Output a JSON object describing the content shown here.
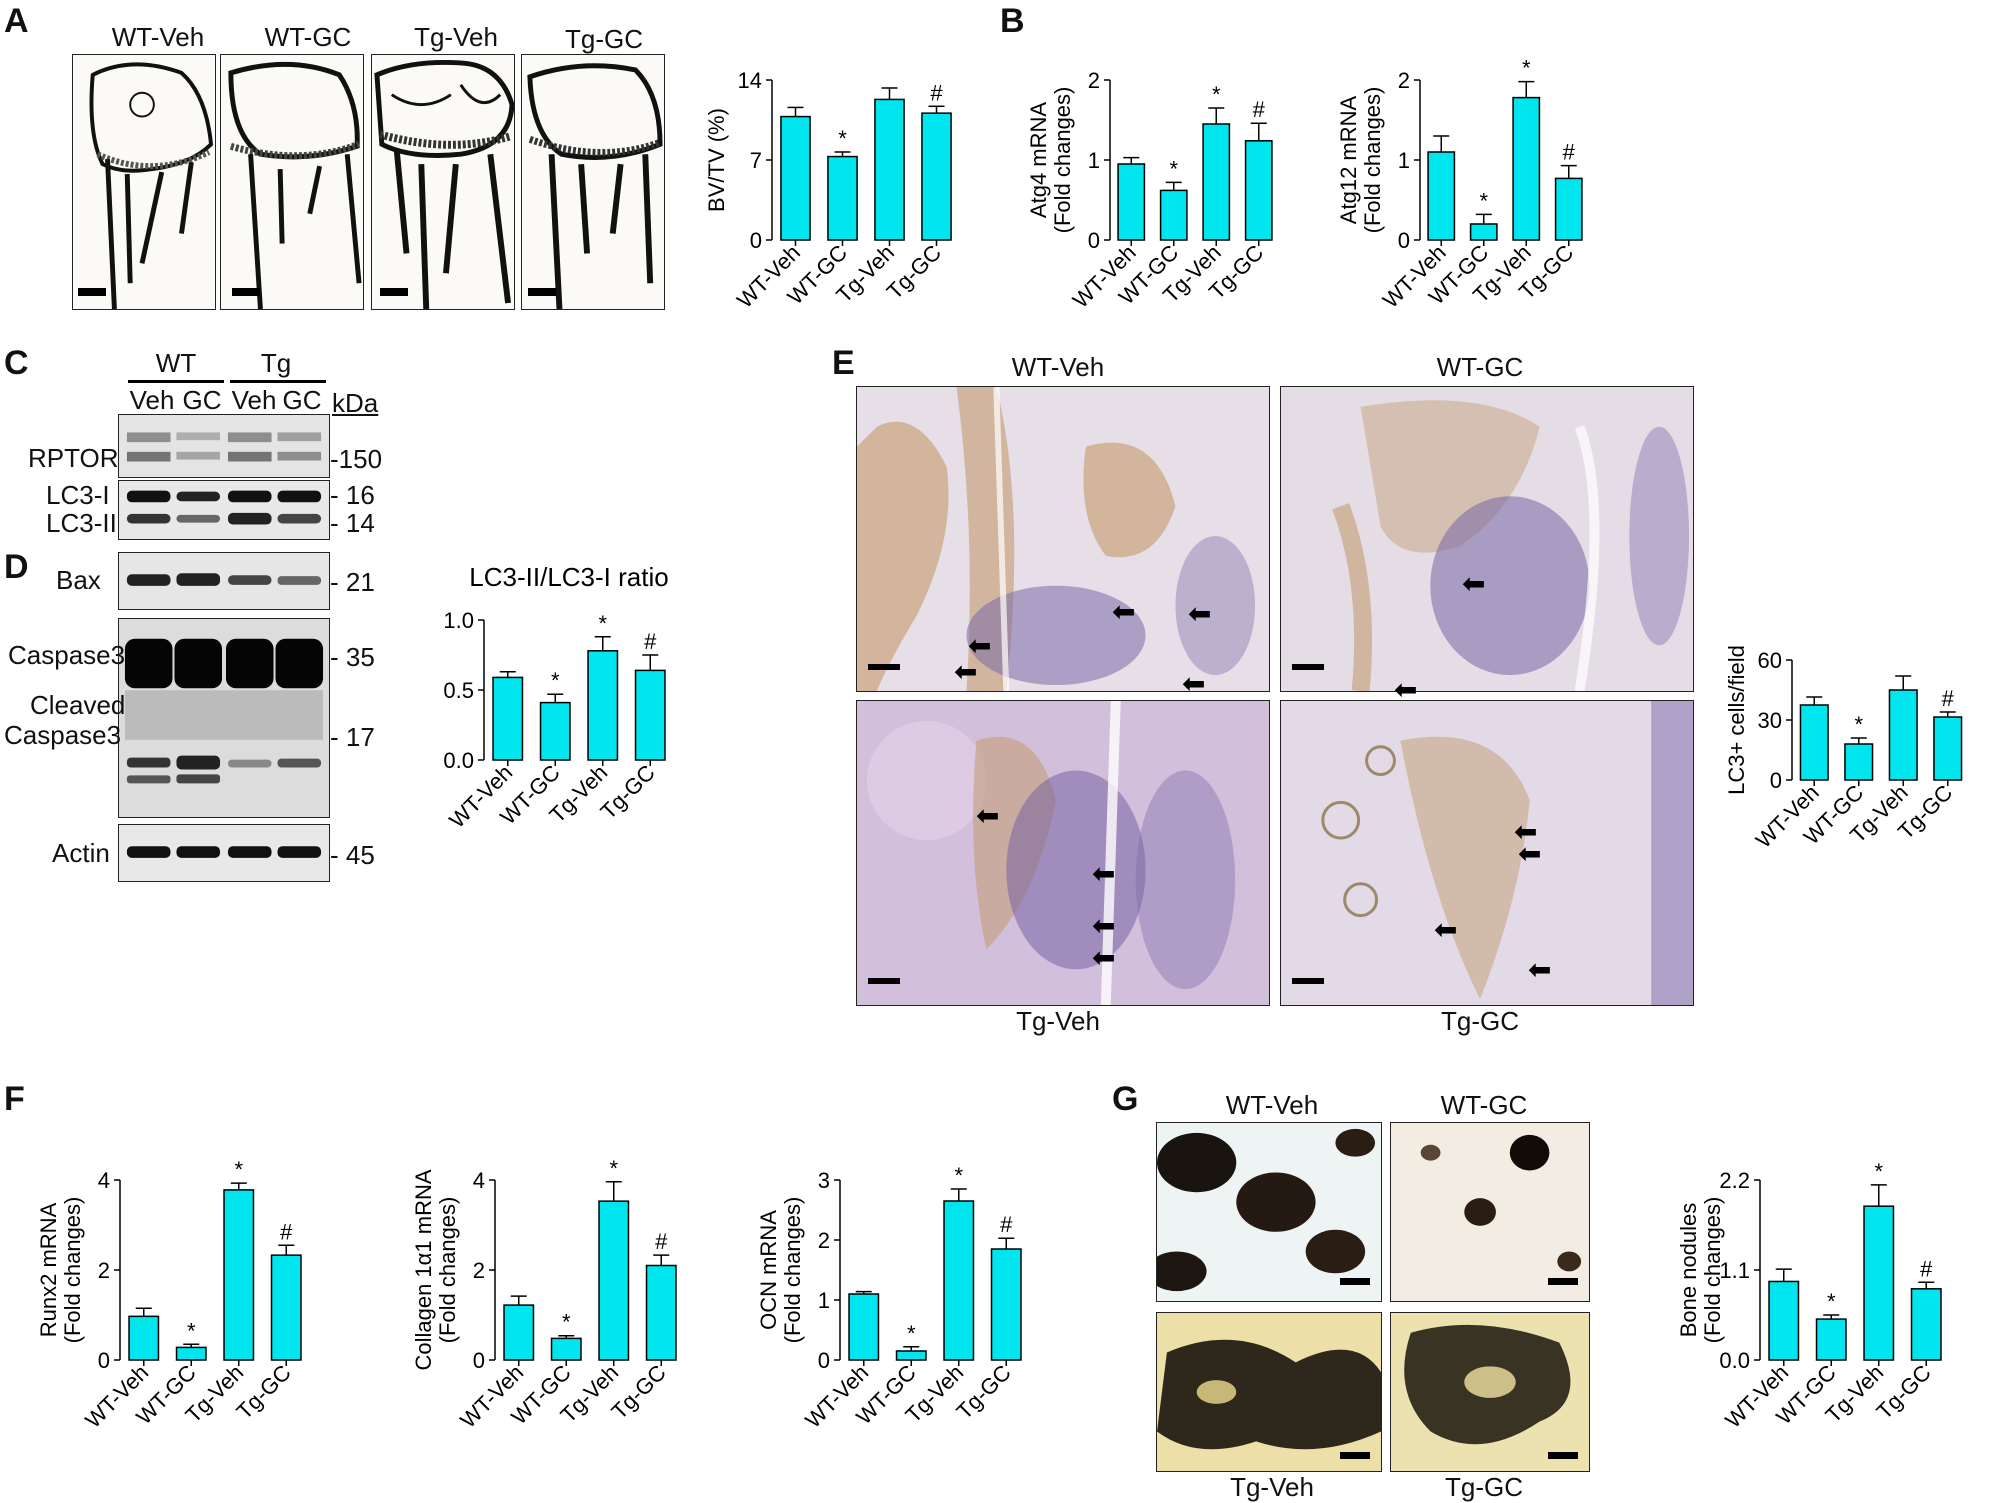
{
  "panels": {
    "A": {
      "letter": "A",
      "image_labels": [
        "WT-Veh",
        "WT-GC",
        "Tg-Veh",
        "Tg-GC"
      ]
    },
    "B": {
      "letter": "B"
    },
    "C": {
      "letter": "C",
      "group_labels": [
        "WT",
        "Tg"
      ],
      "lane_labels": [
        "Veh",
        "GC",
        "Veh",
        "GC"
      ],
      "kda_label": "kDa",
      "rows": [
        {
          "name": "RPTOR",
          "marker": "-150"
        },
        {
          "name": "LC3-I",
          "marker": "- 16"
        },
        {
          "name": "LC3-II",
          "marker": "- 14"
        }
      ]
    },
    "D": {
      "letter": "D",
      "rows": [
        {
          "name": "Bax",
          "marker": "- 21"
        },
        {
          "name": "Caspase3",
          "marker": "- 35"
        },
        {
          "name": "Cleaved\nCaspase3",
          "name_line1": "Cleaved",
          "name_line2": "Caspase3",
          "marker": "- 17"
        },
        {
          "name": "Actin",
          "marker": "- 45"
        }
      ]
    },
    "E": {
      "letter": "E",
      "image_labels": [
        "WT-Veh",
        "WT-GC",
        "Tg-Veh",
        "Tg-GC"
      ]
    },
    "F": {
      "letter": "F"
    },
    "G": {
      "letter": "G",
      "image_labels": [
        "WT-Veh",
        "WT-GC",
        "Tg-Veh",
        "Tg-GC"
      ]
    }
  },
  "chart_data": [
    {
      "id": "bvtv",
      "type": "bar",
      "title": "",
      "ylabel": "BV/TV (%)",
      "ylabel2": "",
      "categories": [
        "WT-Veh",
        "WT-GC",
        "Tg-Veh",
        "Tg-GC"
      ],
      "values": [
        10.8,
        7.3,
        12.3,
        11.1
      ],
      "errors": [
        0.8,
        0.4,
        1.0,
        0.6
      ],
      "marks": [
        "",
        "*",
        "",
        "#"
      ],
      "ylim": [
        0,
        14
      ],
      "yticks": [
        "0",
        "7",
        "14"
      ],
      "color": "#00e5ee"
    },
    {
      "id": "atg4",
      "type": "bar",
      "title": "",
      "ylabel": "Atg4 mRNA",
      "ylabel2": "(Fold changes)",
      "categories": [
        "WT-Veh",
        "WT-GC",
        "Tg-Veh",
        "Tg-GC"
      ],
      "values": [
        0.95,
        0.62,
        1.45,
        1.24
      ],
      "errors": [
        0.08,
        0.1,
        0.2,
        0.22
      ],
      "marks": [
        "",
        "*",
        "*",
        "#"
      ],
      "ylim": [
        0,
        2
      ],
      "yticks": [
        "0",
        "1",
        "2"
      ],
      "color": "#00e5ee"
    },
    {
      "id": "atg12",
      "type": "bar",
      "title": "",
      "ylabel": "Atg12 mRNA",
      "ylabel2": "(Fold changes)",
      "categories": [
        "WT-Veh",
        "WT-GC",
        "Tg-Veh",
        "Tg-GC"
      ],
      "values": [
        1.1,
        0.2,
        1.78,
        0.77
      ],
      "errors": [
        0.2,
        0.12,
        0.2,
        0.16
      ],
      "marks": [
        "",
        "*",
        "*",
        "#"
      ],
      "ylim": [
        0,
        2
      ],
      "yticks": [
        "0",
        "1",
        "2"
      ],
      "color": "#00e5ee"
    },
    {
      "id": "lc3ratio",
      "type": "bar",
      "title": "LC3-II/LC3-I ratio",
      "ylabel": "",
      "ylabel2": "",
      "categories": [
        "WT-Veh",
        "WT-GC",
        "Tg-Veh",
        "Tg-GC"
      ],
      "values": [
        0.59,
        0.41,
        0.78,
        0.64
      ],
      "errors": [
        0.04,
        0.06,
        0.1,
        0.11
      ],
      "marks": [
        "",
        "*",
        "*",
        "#"
      ],
      "ylim": [
        0,
        1.0
      ],
      "yticks": [
        "0.0",
        "0.5",
        "1.0"
      ],
      "color": "#00e5ee"
    },
    {
      "id": "lc3cells",
      "type": "bar",
      "title": "",
      "ylabel": "LC3+ cells/field",
      "ylabel2": "",
      "categories": [
        "WT-Veh",
        "WT-GC",
        "Tg-Veh",
        "Tg-GC"
      ],
      "values": [
        37.5,
        18,
        45,
        31.5
      ],
      "errors": [
        4,
        3,
        7,
        2.5
      ],
      "marks": [
        "",
        "*",
        "",
        "#"
      ],
      "ylim": [
        0,
        60
      ],
      "yticks": [
        "0",
        "30",
        "60"
      ],
      "color": "#00e5ee"
    },
    {
      "id": "runx2",
      "type": "bar",
      "title": "",
      "ylabel": "Runx2 mRNA",
      "ylabel2": "(Fold changes)",
      "categories": [
        "WT-Veh",
        "WT-GC",
        "Tg-Veh",
        "Tg-GC"
      ],
      "values": [
        0.97,
        0.28,
        3.78,
        2.33
      ],
      "errors": [
        0.18,
        0.07,
        0.15,
        0.22
      ],
      "marks": [
        "",
        "*",
        "*",
        "#"
      ],
      "ylim": [
        0,
        4
      ],
      "yticks": [
        "0",
        "2",
        "4"
      ],
      "color": "#00e5ee"
    },
    {
      "id": "col1a1",
      "type": "bar",
      "title": "",
      "ylabel": "Collagen 1α1 mRNA",
      "ylabel2": "(Fold changes)",
      "categories": [
        "WT-Veh",
        "WT-GC",
        "Tg-Veh",
        "Tg-GC"
      ],
      "values": [
        1.22,
        0.48,
        3.53,
        2.1
      ],
      "errors": [
        0.2,
        0.06,
        0.43,
        0.23
      ],
      "marks": [
        "",
        "*",
        "*",
        "#"
      ],
      "ylim": [
        0,
        4
      ],
      "yticks": [
        "0",
        "2",
        "4"
      ],
      "color": "#00e5ee"
    },
    {
      "id": "ocn",
      "type": "bar",
      "title": "",
      "ylabel": "OCN mRNA",
      "ylabel2": "(Fold changes)",
      "categories": [
        "WT-Veh",
        "WT-GC",
        "Tg-Veh",
        "Tg-GC"
      ],
      "values": [
        1.1,
        0.15,
        2.65,
        1.85
      ],
      "errors": [
        0.04,
        0.07,
        0.2,
        0.18
      ],
      "marks": [
        "",
        "*",
        "*",
        "#"
      ],
      "ylim": [
        0,
        3
      ],
      "yticks": [
        "0",
        "1",
        "2",
        "3"
      ],
      "color": "#00e5ee"
    },
    {
      "id": "nodules",
      "type": "bar",
      "title": "",
      "ylabel": "Bone nodules",
      "ylabel2": "(Fold changes)",
      "categories": [
        "WT-Veh",
        "WT-GC",
        "Tg-Veh",
        "Tg-GC"
      ],
      "values": [
        0.96,
        0.5,
        1.88,
        0.87
      ],
      "errors": [
        0.15,
        0.05,
        0.26,
        0.08
      ],
      "marks": [
        "",
        "*",
        "*",
        "#"
      ],
      "ylim": [
        0,
        2.2
      ],
      "yticks": [
        "0.0",
        "1.1",
        "2.2"
      ],
      "color": "#00e5ee"
    }
  ]
}
